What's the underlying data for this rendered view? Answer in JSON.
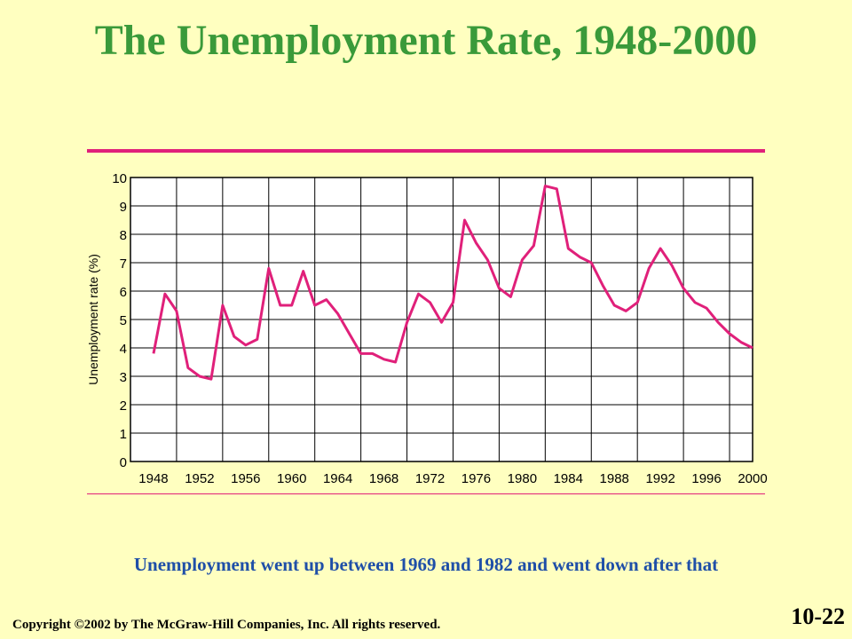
{
  "slide": {
    "title": "The Unemployment Rate, 1948-2000",
    "caption": "Unemployment went up between 1969 and 1982 and went down after that",
    "copyright": "Copyright ©2002 by The McGraw-Hill Companies, Inc.  All rights reserved.",
    "slide_number": "10-22"
  },
  "colors": {
    "background": "#ffffc0",
    "title": "#3a9a3a",
    "line": "#e0207a",
    "caption": "#1f4fa8"
  },
  "chart_data": {
    "type": "line",
    "ylabel": "Unemployment rate (%)",
    "xlabel": "",
    "xlim": [
      1946,
      2000
    ],
    "ylim": [
      0,
      10
    ],
    "grid": true,
    "yticks": [
      0,
      1,
      2,
      3,
      4,
      5,
      6,
      7,
      8,
      9,
      10
    ],
    "xticks": [
      1948,
      1952,
      1956,
      1960,
      1964,
      1968,
      1972,
      1976,
      1980,
      1984,
      1988,
      1992,
      1996,
      2000
    ],
    "series": [
      {
        "x": [
          1948,
          1949,
          1950,
          1951,
          1952,
          1953,
          1954,
          1955,
          1956,
          1957,
          1958,
          1959,
          1960,
          1961,
          1962,
          1963,
          1964,
          1965,
          1966,
          1967,
          1968,
          1969,
          1970,
          1971,
          1972,
          1973,
          1974,
          1975,
          1976,
          1977,
          1978,
          1979,
          1980,
          1981,
          1982,
          1983,
          1984,
          1985,
          1986,
          1987,
          1988,
          1989,
          1990,
          1991,
          1992,
          1993,
          1994,
          1995,
          1996,
          1997,
          1998,
          1999,
          2000
        ],
        "y": [
          3.8,
          5.9,
          5.3,
          3.3,
          3.0,
          2.9,
          5.5,
          4.4,
          4.1,
          4.3,
          6.8,
          5.5,
          5.5,
          6.7,
          5.5,
          5.7,
          5.2,
          4.5,
          3.8,
          3.8,
          3.6,
          3.5,
          4.9,
          5.9,
          5.6,
          4.9,
          5.6,
          8.5,
          7.7,
          7.1,
          6.1,
          5.8,
          7.1,
          7.6,
          9.7,
          9.6,
          7.5,
          7.2,
          7.0,
          6.2,
          5.5,
          5.3,
          5.6,
          6.8,
          7.5,
          6.9,
          6.1,
          5.6,
          5.4,
          4.9,
          4.5,
          4.2,
          4.0
        ]
      }
    ]
  }
}
